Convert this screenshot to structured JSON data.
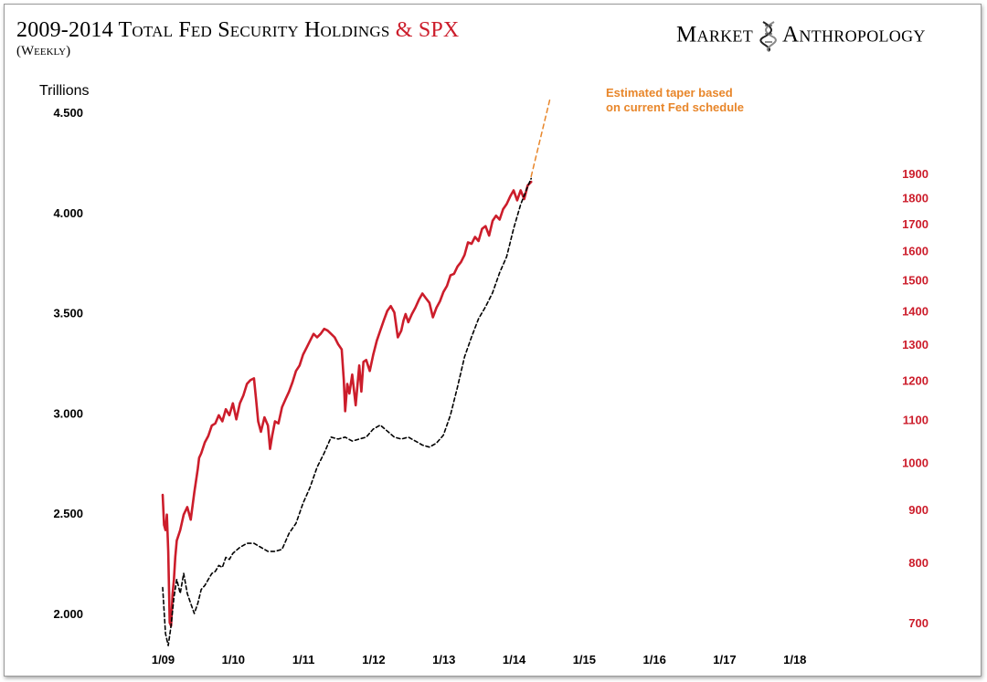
{
  "header": {
    "title_main": "2009-2014 Total Fed Security Holdings",
    "title_amp": "& SPX",
    "subtitle": "(Weekly)",
    "brand_left": "Market",
    "brand_right": "Anthropology",
    "logo_icon": "dna-helix-icon"
  },
  "colors": {
    "spx": "#cc1d2b",
    "fed": "#000000",
    "taper": "#e8862a",
    "left_axis": "#000000",
    "right_axis": "#cc1d2b"
  },
  "chart_data": {
    "type": "line",
    "x_ticks": [
      "1/09",
      "1/10",
      "1/11",
      "1/12",
      "1/13",
      "1/14",
      "1/15",
      "1/16",
      "1/17",
      "1/18"
    ],
    "x_range": [
      2009.0,
      2018.4
    ],
    "left_axis": {
      "label": "Trillions",
      "ticks": [
        "4.500",
        "4.000",
        "3.500",
        "3.000",
        "2.500",
        "2.000"
      ],
      "range": [
        1.83,
        4.62
      ]
    },
    "right_axis": {
      "scale": "log",
      "ticks": [
        "1900",
        "1800",
        "1700",
        "1600",
        "1500",
        "1400",
        "1300",
        "1200",
        "1100",
        "1000",
        "900",
        "800",
        "700"
      ],
      "range": [
        665,
        2300
      ]
    },
    "annotation": {
      "lines": [
        "Estimated taper based",
        "on current Fed schedule"
      ]
    },
    "series": [
      {
        "axis": "right",
        "style": "solid",
        "x": [
          2009.0,
          2009.02,
          2009.04,
          2009.06,
          2009.08,
          2009.1,
          2009.12,
          2009.14,
          2009.16,
          2009.18,
          2009.2,
          2009.25,
          2009.3,
          2009.35,
          2009.4,
          2009.45,
          2009.5,
          2009.52,
          2009.55,
          2009.6,
          2009.65,
          2009.7,
          2009.75,
          2009.8,
          2009.85,
          2009.9,
          2009.95,
          2010.0,
          2010.05,
          2010.1,
          2010.15,
          2010.2,
          2010.25,
          2010.3,
          2010.33,
          2010.36,
          2010.4,
          2010.45,
          2010.5,
          2010.53,
          2010.56,
          2010.6,
          2010.65,
          2010.7,
          2010.75,
          2010.8,
          2010.85,
          2010.9,
          2010.95,
          2011.0,
          2011.05,
          2011.1,
          2011.15,
          2011.2,
          2011.25,
          2011.3,
          2011.35,
          2011.4,
          2011.45,
          2011.5,
          2011.55,
          2011.58,
          2011.6,
          2011.63,
          2011.66,
          2011.7,
          2011.75,
          2011.8,
          2011.83,
          2011.86,
          2011.9,
          2011.95,
          2012.0,
          2012.05,
          2012.1,
          2012.15,
          2012.2,
          2012.25,
          2012.3,
          2012.35,
          2012.4,
          2012.43,
          2012.46,
          2012.5,
          2012.55,
          2012.6,
          2012.65,
          2012.7,
          2012.75,
          2012.8,
          2012.85,
          2012.9,
          2012.95,
          2013.0,
          2013.05,
          2013.1,
          2013.15,
          2013.2,
          2013.25,
          2013.3,
          2013.35,
          2013.4,
          2013.45,
          2013.5,
          2013.55,
          2013.6,
          2013.65,
          2013.7,
          2013.75,
          2013.8,
          2013.85,
          2013.9,
          2013.95,
          2014.0,
          2014.05,
          2014.1,
          2014.15,
          2014.2,
          2014.25
        ],
        "values": [
          930,
          870,
          860,
          890,
          820,
          700,
          695,
          745,
          770,
          810,
          840,
          860,
          890,
          905,
          880,
          935,
          985,
          1010,
          1020,
          1045,
          1060,
          1085,
          1090,
          1110,
          1095,
          1125,
          1110,
          1140,
          1100,
          1140,
          1160,
          1190,
          1200,
          1205,
          1150,
          1095,
          1070,
          1105,
          1085,
          1030,
          1060,
          1095,
          1090,
          1130,
          1150,
          1170,
          1195,
          1225,
          1240,
          1270,
          1290,
          1310,
          1330,
          1320,
          1330,
          1345,
          1340,
          1330,
          1320,
          1300,
          1285,
          1200,
          1120,
          1190,
          1165,
          1215,
          1135,
          1240,
          1170,
          1250,
          1255,
          1225,
          1270,
          1310,
          1340,
          1370,
          1400,
          1415,
          1395,
          1320,
          1340,
          1370,
          1390,
          1365,
          1390,
          1410,
          1435,
          1455,
          1440,
          1425,
          1380,
          1410,
          1430,
          1460,
          1480,
          1515,
          1520,
          1545,
          1560,
          1585,
          1630,
          1625,
          1650,
          1635,
          1680,
          1690,
          1655,
          1710,
          1730,
          1715,
          1755,
          1775,
          1805,
          1830,
          1790,
          1830,
          1795,
          1850,
          1865
        ]
      },
      {
        "axis": "left",
        "style": "dashed",
        "x": [
          2009.0,
          2009.04,
          2009.08,
          2009.12,
          2009.16,
          2009.2,
          2009.25,
          2009.3,
          2009.35,
          2009.4,
          2009.45,
          2009.5,
          2009.55,
          2009.6,
          2009.65,
          2009.7,
          2009.75,
          2009.8,
          2009.85,
          2009.9,
          2009.95,
          2010.0,
          2010.1,
          2010.2,
          2010.3,
          2010.4,
          2010.5,
          2010.6,
          2010.7,
          2010.8,
          2010.9,
          2011.0,
          2011.1,
          2011.2,
          2011.3,
          2011.4,
          2011.5,
          2011.6,
          2011.7,
          2011.8,
          2011.9,
          2012.0,
          2012.1,
          2012.2,
          2012.3,
          2012.4,
          2012.5,
          2012.6,
          2012.7,
          2012.8,
          2012.9,
          2013.0,
          2013.1,
          2013.2,
          2013.3,
          2013.4,
          2013.5,
          2013.6,
          2013.7,
          2013.8,
          2013.9,
          2014.0,
          2014.1,
          2014.2,
          2014.25
        ],
        "values": [
          2.13,
          1.9,
          1.84,
          1.94,
          2.08,
          2.17,
          2.1,
          2.2,
          2.1,
          2.05,
          2.0,
          2.05,
          2.12,
          2.14,
          2.17,
          2.2,
          2.21,
          2.24,
          2.23,
          2.28,
          2.27,
          2.3,
          2.33,
          2.35,
          2.35,
          2.33,
          2.31,
          2.31,
          2.32,
          2.4,
          2.45,
          2.55,
          2.63,
          2.73,
          2.8,
          2.88,
          2.87,
          2.88,
          2.86,
          2.87,
          2.88,
          2.92,
          2.94,
          2.91,
          2.88,
          2.87,
          2.88,
          2.86,
          2.84,
          2.83,
          2.85,
          2.89,
          2.99,
          3.13,
          3.28,
          3.38,
          3.47,
          3.53,
          3.6,
          3.7,
          3.78,
          3.92,
          4.04,
          4.13,
          4.17
        ]
      },
      {
        "axis": "left",
        "style": "dashed",
        "x": [
          2014.25,
          2014.52
        ],
        "values": [
          4.18,
          4.57
        ]
      }
    ]
  }
}
